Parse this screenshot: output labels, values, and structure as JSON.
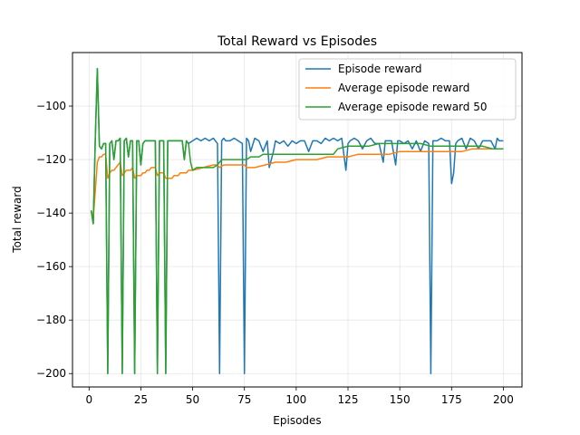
{
  "chart_data": {
    "type": "line",
    "title": "Total Reward vs Episodes",
    "xlabel": "Episodes",
    "ylabel": "Total reward",
    "xlim": [
      -8,
      209
    ],
    "ylim": [
      -205,
      -80
    ],
    "xticks": [
      0,
      25,
      50,
      75,
      100,
      125,
      150,
      175,
      200
    ],
    "yticks": [
      -200,
      -180,
      -160,
      -140,
      -120,
      -100
    ],
    "grid": true,
    "legend_position": "top-right",
    "series": [
      {
        "name": "Episode reward",
        "color": "#1f77b4",
        "points": [
          [
            1,
            -139
          ],
          [
            2,
            -144
          ],
          [
            3,
            -113
          ],
          [
            4,
            -86
          ],
          [
            5,
            -115
          ],
          [
            6,
            -116
          ],
          [
            7,
            -114
          ],
          [
            8,
            -114
          ],
          [
            9,
            -200
          ],
          [
            10,
            -114
          ],
          [
            11,
            -113
          ],
          [
            12,
            -120
          ],
          [
            13,
            -113
          ],
          [
            14,
            -113
          ],
          [
            15,
            -112
          ],
          [
            16,
            -200
          ],
          [
            17,
            -113
          ],
          [
            18,
            -112
          ],
          [
            19,
            -119
          ],
          [
            20,
            -113
          ],
          [
            21,
            -113
          ],
          [
            22,
            -200
          ],
          [
            23,
            -113
          ],
          [
            24,
            -113
          ],
          [
            25,
            -122
          ],
          [
            26,
            -114
          ],
          [
            27,
            -113
          ],
          [
            28,
            -113
          ],
          [
            29,
            -113
          ],
          [
            30,
            -113
          ],
          [
            31,
            -113
          ],
          [
            32,
            -113
          ],
          [
            33,
            -200
          ],
          [
            34,
            -113
          ],
          [
            35,
            -113
          ],
          [
            36,
            -113
          ],
          [
            37,
            -200
          ],
          [
            38,
            -113
          ],
          [
            39,
            -113
          ],
          [
            40,
            -113
          ],
          [
            41,
            -113
          ],
          [
            42,
            -113
          ],
          [
            43,
            -113
          ],
          [
            44,
            -113
          ],
          [
            45,
            -113
          ],
          [
            46,
            -120
          ],
          [
            47,
            -113
          ],
          [
            48,
            -114
          ],
          [
            50,
            -113
          ],
          [
            52,
            -112
          ],
          [
            54,
            -113
          ],
          [
            56,
            -112
          ],
          [
            58,
            -113
          ],
          [
            60,
            -112
          ],
          [
            62,
            -114
          ],
          [
            63,
            -200
          ],
          [
            64,
            -113
          ],
          [
            65,
            -112
          ],
          [
            66,
            -113
          ],
          [
            68,
            -113
          ],
          [
            70,
            -112
          ],
          [
            72,
            -113
          ],
          [
            74,
            -114
          ],
          [
            75,
            -200
          ],
          [
            76,
            -112
          ],
          [
            77,
            -113
          ],
          [
            78,
            -117
          ],
          [
            80,
            -112
          ],
          [
            82,
            -113
          ],
          [
            84,
            -117
          ],
          [
            86,
            -113
          ],
          [
            87,
            -123
          ],
          [
            88,
            -120
          ],
          [
            89,
            -117
          ],
          [
            90,
            -113
          ],
          [
            92,
            -114
          ],
          [
            94,
            -113
          ],
          [
            96,
            -115
          ],
          [
            98,
            -113
          ],
          [
            100,
            -114
          ],
          [
            102,
            -113
          ],
          [
            104,
            -113
          ],
          [
            106,
            -117
          ],
          [
            108,
            -113
          ],
          [
            110,
            -113
          ],
          [
            112,
            -114
          ],
          [
            114,
            -112
          ],
          [
            116,
            -113
          ],
          [
            118,
            -112
          ],
          [
            120,
            -113
          ],
          [
            122,
            -112
          ],
          [
            124,
            -124
          ],
          [
            125,
            -114
          ],
          [
            126,
            -113
          ],
          [
            128,
            -112
          ],
          [
            130,
            -113
          ],
          [
            132,
            -116
          ],
          [
            134,
            -113
          ],
          [
            136,
            -112
          ],
          [
            138,
            -114
          ],
          [
            140,
            -114
          ],
          [
            142,
            -121
          ],
          [
            143,
            -113
          ],
          [
            144,
            -113
          ],
          [
            146,
            -113
          ],
          [
            148,
            -122
          ],
          [
            149,
            -113
          ],
          [
            150,
            -113
          ],
          [
            152,
            -114
          ],
          [
            154,
            -113
          ],
          [
            156,
            -116
          ],
          [
            158,
            -113
          ],
          [
            160,
            -117
          ],
          [
            162,
            -113
          ],
          [
            164,
            -114
          ],
          [
            165,
            -200
          ],
          [
            166,
            -113
          ],
          [
            168,
            -113
          ],
          [
            170,
            -112
          ],
          [
            172,
            -113
          ],
          [
            174,
            -113
          ],
          [
            175,
            -129
          ],
          [
            176,
            -125
          ],
          [
            177,
            -114
          ],
          [
            178,
            -113
          ],
          [
            180,
            -112
          ],
          [
            182,
            -116
          ],
          [
            184,
            -112
          ],
          [
            186,
            -113
          ],
          [
            188,
            -116
          ],
          [
            190,
            -113
          ],
          [
            192,
            -113
          ],
          [
            194,
            -113
          ],
          [
            196,
            -116
          ],
          [
            197,
            -112
          ],
          [
            198,
            -113
          ],
          [
            200,
            -113
          ]
        ]
      },
      {
        "name": "Average episode reward",
        "color": "#ff7f0e",
        "points": [
          [
            1,
            -139
          ],
          [
            2,
            -142
          ],
          [
            3,
            -132
          ],
          [
            4,
            -121
          ],
          [
            5,
            -119
          ],
          [
            6,
            -119
          ],
          [
            7,
            -118
          ],
          [
            8,
            -118
          ],
          [
            9,
            -127
          ],
          [
            10,
            -125
          ],
          [
            11,
            -124
          ],
          [
            12,
            -124
          ],
          [
            13,
            -123
          ],
          [
            14,
            -122
          ],
          [
            15,
            -121
          ],
          [
            16,
            -126
          ],
          [
            17,
            -125
          ],
          [
            18,
            -124
          ],
          [
            19,
            -124
          ],
          [
            20,
            -124
          ],
          [
            21,
            -123
          ],
          [
            22,
            -127
          ],
          [
            23,
            -126
          ],
          [
            24,
            -126
          ],
          [
            25,
            -126
          ],
          [
            26,
            -125
          ],
          [
            27,
            -125
          ],
          [
            28,
            -124
          ],
          [
            29,
            -124
          ],
          [
            30,
            -123
          ],
          [
            31,
            -123
          ],
          [
            32,
            -123
          ],
          [
            33,
            -126
          ],
          [
            34,
            -125
          ],
          [
            35,
            -125
          ],
          [
            36,
            -125
          ],
          [
            37,
            -127
          ],
          [
            38,
            -127
          ],
          [
            39,
            -127
          ],
          [
            40,
            -127
          ],
          [
            41,
            -126
          ],
          [
            42,
            -126
          ],
          [
            43,
            -126
          ],
          [
            44,
            -125
          ],
          [
            45,
            -125
          ],
          [
            46,
            -125
          ],
          [
            47,
            -125
          ],
          [
            48,
            -124
          ],
          [
            50,
            -124
          ],
          [
            55,
            -123
          ],
          [
            60,
            -122
          ],
          [
            62,
            -122
          ],
          [
            63,
            -123
          ],
          [
            65,
            -122
          ],
          [
            70,
            -122
          ],
          [
            75,
            -122
          ],
          [
            76,
            -123
          ],
          [
            80,
            -123
          ],
          [
            85,
            -122
          ],
          [
            90,
            -121
          ],
          [
            95,
            -121
          ],
          [
            100,
            -120
          ],
          [
            105,
            -120
          ],
          [
            110,
            -120
          ],
          [
            115,
            -119
          ],
          [
            120,
            -119
          ],
          [
            125,
            -119
          ],
          [
            130,
            -118
          ],
          [
            135,
            -118
          ],
          [
            140,
            -118
          ],
          [
            145,
            -118
          ],
          [
            150,
            -117
          ],
          [
            155,
            -117
          ],
          [
            160,
            -117
          ],
          [
            165,
            -117
          ],
          [
            170,
            -117
          ],
          [
            175,
            -117
          ],
          [
            180,
            -117
          ],
          [
            185,
            -116
          ],
          [
            190,
            -116
          ],
          [
            195,
            -116
          ],
          [
            200,
            -116
          ]
        ]
      },
      {
        "name": "Average episode reward 50",
        "color": "#2ca02c",
        "points": [
          [
            1,
            -139
          ],
          [
            2,
            -144
          ],
          [
            3,
            -113
          ],
          [
            4,
            -86
          ],
          [
            5,
            -115
          ],
          [
            6,
            -116
          ],
          [
            7,
            -114
          ],
          [
            8,
            -114
          ],
          [
            9,
            -200
          ],
          [
            10,
            -114
          ],
          [
            11,
            -113
          ],
          [
            12,
            -120
          ],
          [
            13,
            -113
          ],
          [
            14,
            -113
          ],
          [
            15,
            -112
          ],
          [
            16,
            -200
          ],
          [
            17,
            -113
          ],
          [
            18,
            -112
          ],
          [
            19,
            -119
          ],
          [
            20,
            -113
          ],
          [
            21,
            -113
          ],
          [
            22,
            -200
          ],
          [
            23,
            -113
          ],
          [
            24,
            -113
          ],
          [
            25,
            -122
          ],
          [
            26,
            -114
          ],
          [
            27,
            -113
          ],
          [
            28,
            -113
          ],
          [
            29,
            -113
          ],
          [
            30,
            -113
          ],
          [
            31,
            -113
          ],
          [
            32,
            -113
          ],
          [
            33,
            -200
          ],
          [
            34,
            -113
          ],
          [
            35,
            -113
          ],
          [
            36,
            -113
          ],
          [
            37,
            -200
          ],
          [
            38,
            -113
          ],
          [
            39,
            -113
          ],
          [
            40,
            -113
          ],
          [
            41,
            -113
          ],
          [
            42,
            -113
          ],
          [
            43,
            -113
          ],
          [
            44,
            -113
          ],
          [
            45,
            -113
          ],
          [
            46,
            -120
          ],
          [
            47,
            -113
          ],
          [
            48,
            -114
          ],
          [
            49,
            -121
          ],
          [
            50,
            -124
          ],
          [
            52,
            -123
          ],
          [
            54,
            -123
          ],
          [
            56,
            -123
          ],
          [
            58,
            -123
          ],
          [
            60,
            -123
          ],
          [
            62,
            -122
          ],
          [
            64,
            -120
          ],
          [
            66,
            -120
          ],
          [
            68,
            -120
          ],
          [
            70,
            -120
          ],
          [
            72,
            -120
          ],
          [
            74,
            -120
          ],
          [
            76,
            -120
          ],
          [
            78,
            -119
          ],
          [
            80,
            -119
          ],
          [
            82,
            -119
          ],
          [
            84,
            -118
          ],
          [
            86,
            -118
          ],
          [
            88,
            -118
          ],
          [
            90,
            -118
          ],
          [
            95,
            -118
          ],
          [
            100,
            -118
          ],
          [
            105,
            -118
          ],
          [
            110,
            -118
          ],
          [
            115,
            -118
          ],
          [
            118,
            -118
          ],
          [
            120,
            -116
          ],
          [
            125,
            -115
          ],
          [
            130,
            -115
          ],
          [
            135,
            -115
          ],
          [
            140,
            -114
          ],
          [
            145,
            -114
          ],
          [
            150,
            -114
          ],
          [
            155,
            -114
          ],
          [
            160,
            -114
          ],
          [
            165,
            -115
          ],
          [
            170,
            -115
          ],
          [
            175,
            -115
          ],
          [
            180,
            -115
          ],
          [
            185,
            -115
          ],
          [
            190,
            -115
          ],
          [
            195,
            -116
          ],
          [
            200,
            -116
          ]
        ]
      }
    ]
  }
}
